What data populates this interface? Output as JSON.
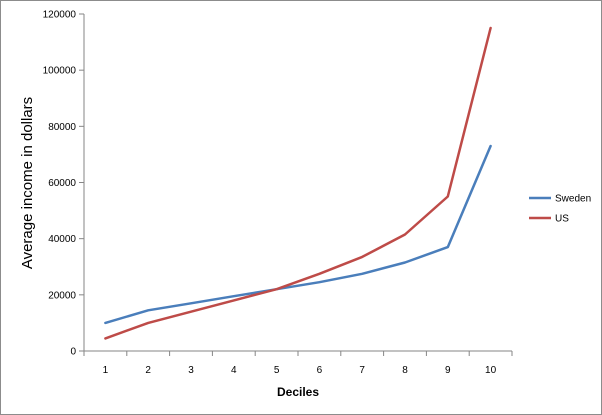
{
  "chart_data": {
    "type": "line",
    "xlabel": "Deciles",
    "ylabel": "Average income in dollars",
    "x": [
      1,
      2,
      3,
      4,
      5,
      6,
      7,
      8,
      9,
      10
    ],
    "ylim": [
      0,
      120000
    ],
    "yticks": [
      0,
      20000,
      40000,
      60000,
      80000,
      100000,
      120000
    ],
    "grid": false,
    "legend_position": "right",
    "series": [
      {
        "name": "Sweden",
        "color": "#4a7ebb",
        "values": [
          10000,
          14500,
          17000,
          19500,
          22000,
          24500,
          27500,
          31500,
          37000,
          73000
        ]
      },
      {
        "name": "US",
        "color": "#be4b48",
        "values": [
          4500,
          10000,
          14000,
          18000,
          22000,
          27500,
          33500,
          41500,
          55000,
          115000
        ]
      }
    ]
  }
}
